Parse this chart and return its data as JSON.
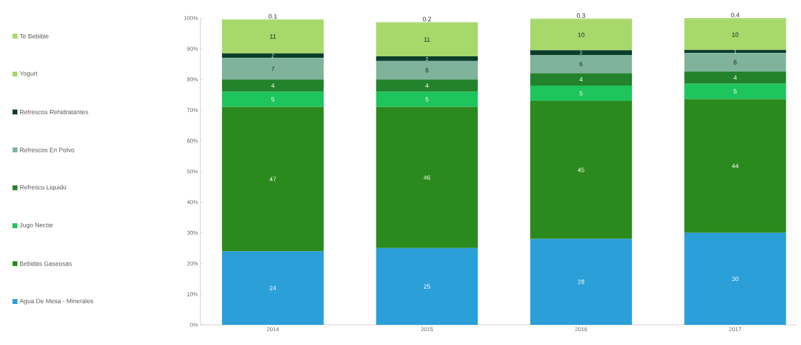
{
  "chart_data": {
    "type": "bar",
    "stacked": true,
    "legend": "left",
    "grid": false,
    "categories": [
      "2014",
      "2015",
      "2016",
      "2017"
    ],
    "ylim": [
      0,
      100
    ],
    "yticks": [
      {
        "value": 0,
        "label": "0%"
      },
      {
        "value": 10,
        "label": "10%"
      },
      {
        "value": 20,
        "label": "20%"
      },
      {
        "value": 30,
        "label": "30%"
      },
      {
        "value": 40,
        "label": "40%"
      },
      {
        "value": 50,
        "label": "50%"
      },
      {
        "value": 60,
        "label": "60%"
      },
      {
        "value": 70,
        "label": "70%"
      },
      {
        "value": 80,
        "label": "80%"
      },
      {
        "value": 90,
        "label": "90%"
      },
      {
        "value": 100,
        "label": "100%"
      }
    ],
    "series": [
      {
        "name": "Agua De Mesa - Minerales",
        "color": "#2a9fd8",
        "values": [
          24,
          25,
          28,
          30
        ],
        "value_labels": [
          "24",
          "25",
          "28",
          "30"
        ]
      },
      {
        "name": "Bebidas Gaseosas",
        "color": "#2b8a1e",
        "values": [
          47,
          46,
          45,
          43.6
        ],
        "value_labels": [
          "47",
          "46",
          "45",
          "44"
        ]
      },
      {
        "name": "Jugo Nectar",
        "color": "#1ec45c",
        "values": [
          5,
          5,
          5,
          5
        ],
        "value_labels": [
          "5",
          "5",
          "5",
          "5"
        ]
      },
      {
        "name": "Refresco Liquido",
        "color": "#23822c",
        "values": [
          4,
          4,
          4,
          4
        ],
        "value_labels": [
          "4",
          "4",
          "4",
          "4"
        ]
      },
      {
        "name": "Refrescos En Polvo",
        "color": "#7fb49a",
        "values": [
          7,
          6,
          6,
          6
        ],
        "value_labels": [
          "7",
          "6",
          "6",
          "6"
        ]
      },
      {
        "name": "Refrescos Rehidratantes",
        "color": "#0a3d2a",
        "values": [
          1.5,
          1.5,
          1.5,
          1
        ],
        "value_labels": [
          "2",
          "2",
          "2",
          "1"
        ]
      },
      {
        "name": "Yogurt",
        "color": "#a6d86a",
        "values": [
          11,
          11,
          10,
          10
        ],
        "value_labels": [
          "11",
          "11",
          "10",
          "10"
        ]
      },
      {
        "name": "Te Bebible",
        "color": "#a6d86a",
        "values": [
          0.1,
          0.2,
          0.3,
          0.4
        ],
        "value_labels": [
          "0.1",
          "0.2",
          "0.3",
          "0.4"
        ]
      }
    ]
  }
}
